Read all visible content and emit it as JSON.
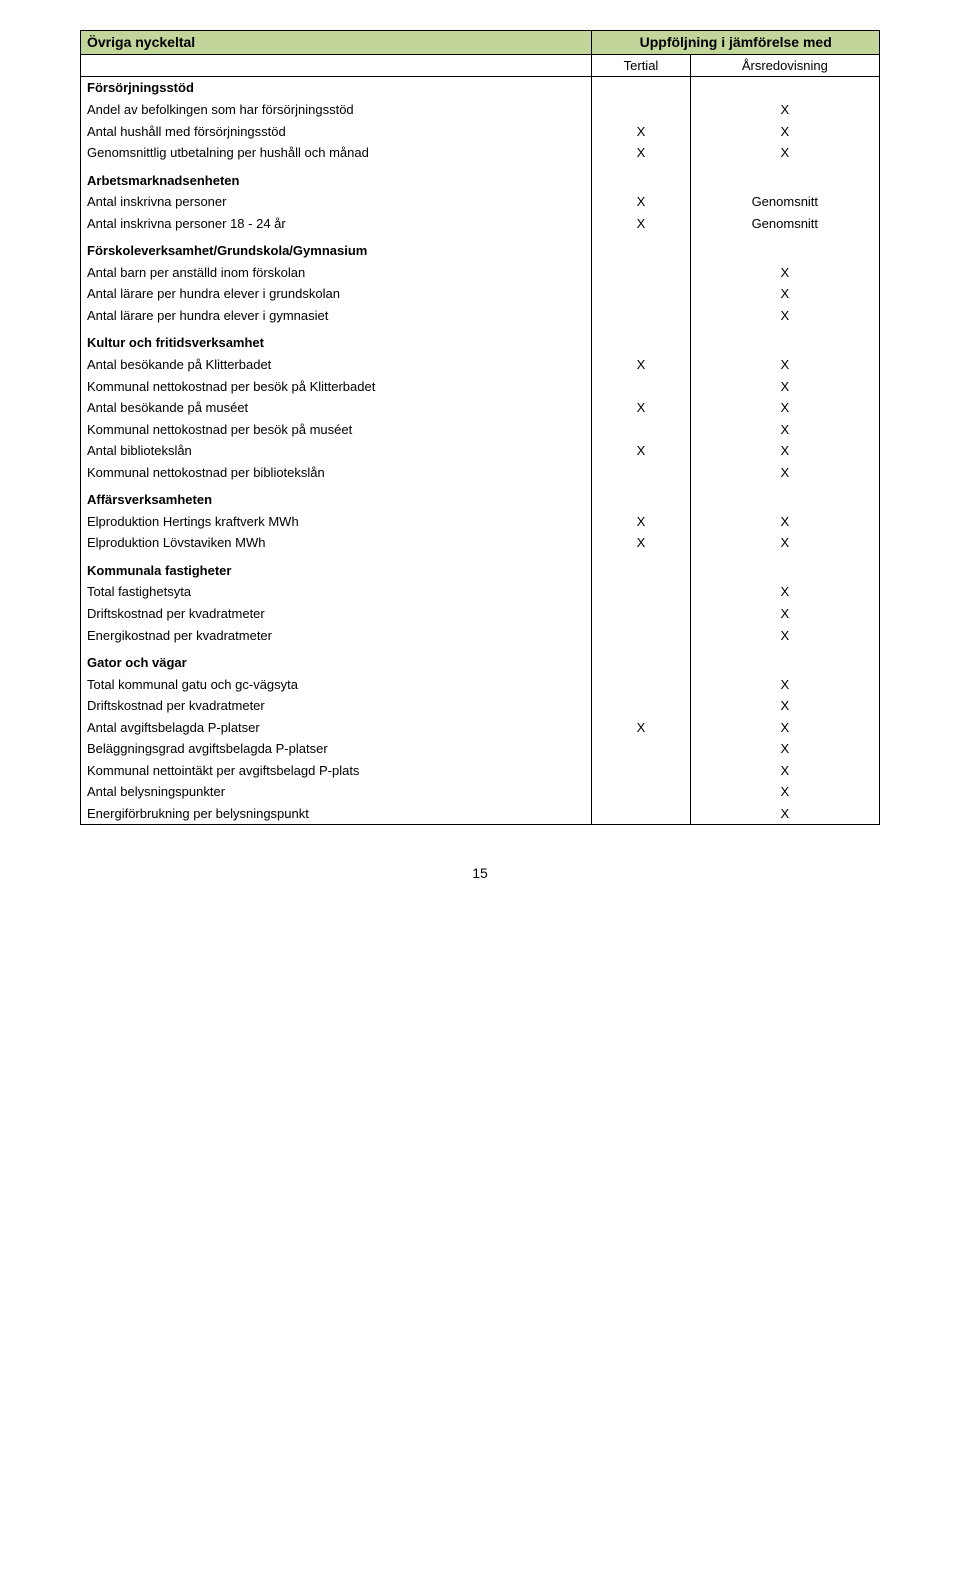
{
  "header": {
    "left": "Övriga nyckeltal",
    "right": "Uppföljning i jämförelse med"
  },
  "subHeader": {
    "col1": "Tertial",
    "col2": "Årsredovisning"
  },
  "sections": [
    {
      "title": "Försörjningsstöd",
      "rows": [
        {
          "label": "Andel av befolkingen som har försörjningsstöd",
          "c1": "",
          "c2": "X"
        },
        {
          "label": "Antal hushåll med försörjningsstöd",
          "c1": "X",
          "c2": "X"
        },
        {
          "label": "Genomsnittlig utbetalning per hushåll och månad",
          "c1": "X",
          "c2": "X"
        }
      ]
    },
    {
      "title": "Arbetsmarknadsenheten",
      "rows": [
        {
          "label": "Antal inskrivna personer",
          "c1": "X",
          "c2": "Genomsnitt"
        },
        {
          "label": "Antal inskrivna personer 18 - 24 år",
          "c1": "X",
          "c2": "Genomsnitt"
        }
      ]
    },
    {
      "title": "Förskoleverksamhet/Grundskola/Gymnasium",
      "rows": [
        {
          "label": "Antal barn per anställd inom förskolan",
          "c1": "",
          "c2": "X"
        },
        {
          "label": "Antal lärare per hundra elever i grundskolan",
          "c1": "",
          "c2": "X"
        },
        {
          "label": "Antal lärare per hundra elever i gymnasiet",
          "c1": "",
          "c2": "X"
        }
      ]
    },
    {
      "title": "Kultur och fritidsverksamhet",
      "rows": [
        {
          "label": "Antal besökande på Klitterbadet",
          "c1": "X",
          "c2": "X"
        },
        {
          "label": "Kommunal nettokostnad per besök på Klitterbadet",
          "c1": "",
          "c2": "X"
        },
        {
          "label": "Antal besökande på muséet",
          "c1": "X",
          "c2": "X"
        },
        {
          "label": "Kommunal nettokostnad per besök på muséet",
          "c1": "",
          "c2": "X"
        },
        {
          "label": "Antal bibliotekslån",
          "c1": "X",
          "c2": "X"
        },
        {
          "label": "Kommunal nettokostnad per bibliotekslån",
          "c1": "",
          "c2": "X"
        }
      ]
    },
    {
      "title": "Affärsverksamheten",
      "rows": [
        {
          "label": "Elproduktion Hertings kraftverk MWh",
          "c1": "X",
          "c2": "X"
        },
        {
          "label": "Elproduktion Lövstaviken MWh",
          "c1": "X",
          "c2": "X"
        }
      ]
    },
    {
      "title": "Kommunala fastigheter",
      "rows": [
        {
          "label": "Total fastighetsyta",
          "c1": "",
          "c2": "X"
        },
        {
          "label": "Driftskostnad per kvadratmeter",
          "c1": "",
          "c2": "X"
        },
        {
          "label": "Energikostnad per kvadratmeter",
          "c1": "",
          "c2": "X"
        }
      ]
    },
    {
      "title": "Gator och vägar",
      "rows": [
        {
          "label": "Total kommunal gatu och gc-vägsyta",
          "c1": "",
          "c2": "X"
        },
        {
          "label": "Driftskostnad per kvadratmeter",
          "c1": "",
          "c2": "X"
        },
        {
          "label": "Antal avgiftsbelagda P-platser",
          "c1": "X",
          "c2": "X"
        },
        {
          "label": "Beläggningsgrad avgiftsbelagda P-platser",
          "c1": "",
          "c2": "X"
        },
        {
          "label": "Kommunal nettointäkt per avgiftsbelagd P-plats",
          "c1": "",
          "c2": "X"
        },
        {
          "label": "Antal belysningspunkter",
          "c1": "",
          "c2": "X"
        },
        {
          "label": "Energiförbrukning per belysningspunkt",
          "c1": "",
          "c2": "X"
        }
      ]
    }
  ],
  "pageNumber": "15"
}
